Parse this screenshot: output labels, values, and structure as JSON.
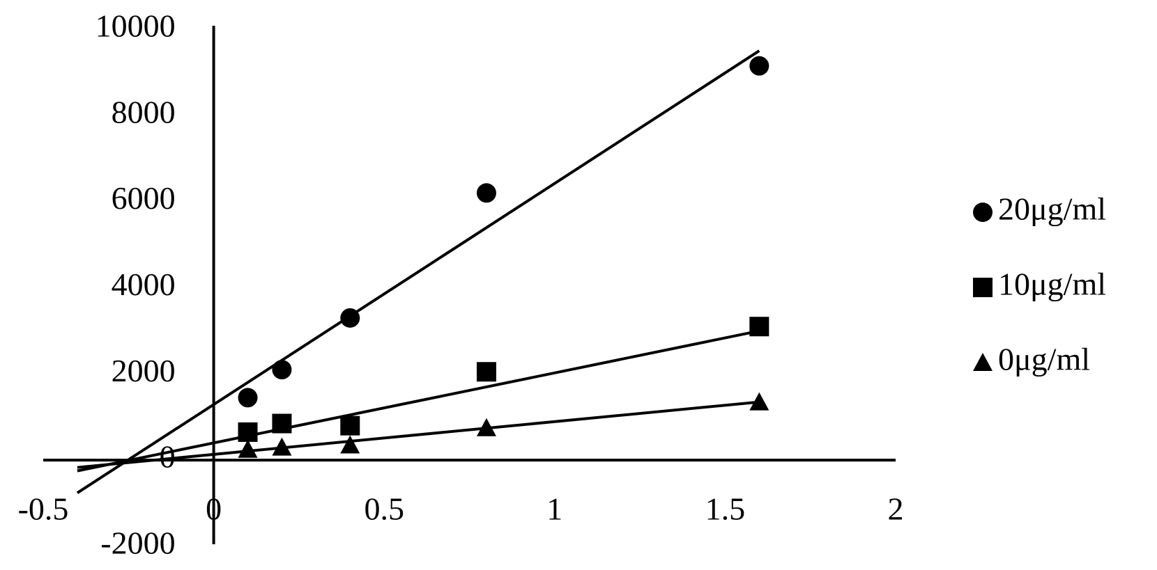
{
  "chart_data": {
    "type": "scatter",
    "xlim": [
      -0.5,
      2
    ],
    "xticks": [
      -0.5,
      0,
      0.5,
      1,
      1.5,
      2
    ],
    "ylim": [
      -2000,
      10000
    ],
    "yticks": [
      -2000,
      0,
      2000,
      4000,
      6000,
      8000,
      10000
    ],
    "legend": "right",
    "series": [
      {
        "name": "20μg/ml",
        "color": "#000000",
        "marker": "circle",
        "x": [
          0.1,
          0.2,
          0.4,
          0.8,
          1.6
        ],
        "values": [
          1450,
          2100,
          3300,
          6200,
          9150
        ],
        "trend_x": [
          -0.4,
          1.6
        ],
        "trend_values": [
          -760,
          9500
        ]
      },
      {
        "name": "10μg/ml",
        "color": "#000000",
        "marker": "square",
        "x": [
          0.1,
          0.2,
          0.4,
          0.8,
          1.6
        ],
        "values": [
          650,
          850,
          800,
          2050,
          3100
        ],
        "trend_x": [
          -0.4,
          1.6
        ],
        "trend_values": [
          -250,
          3000
        ]
      },
      {
        "name": "0μg/ml",
        "color": "#000000",
        "marker": "triangle",
        "x": [
          0.1,
          0.2,
          0.4,
          0.8,
          1.6
        ],
        "values": [
          250,
          300,
          350,
          750,
          1350
        ],
        "trend_x": [
          -0.4,
          1.6
        ],
        "trend_values": [
          -170,
          1350
        ]
      }
    ]
  }
}
